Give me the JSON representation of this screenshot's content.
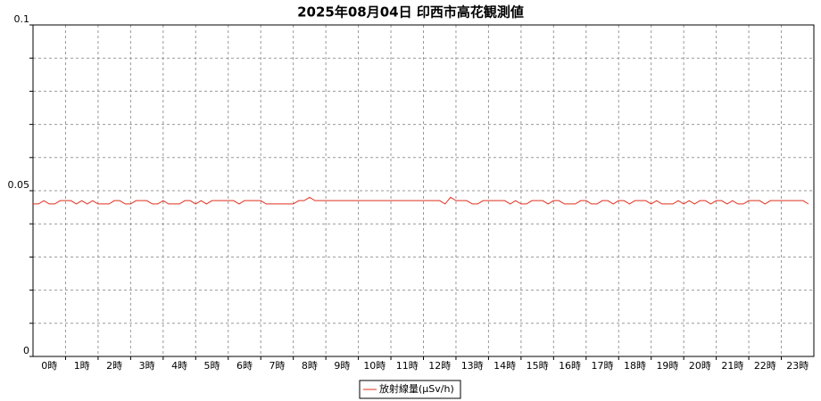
{
  "chart_data": {
    "type": "line",
    "title": "2025年08月04日 印西市高花観測値",
    "x": [
      0,
      10,
      20,
      30,
      40,
      50,
      60,
      70,
      80,
      90,
      100,
      110,
      120,
      130,
      140,
      150,
      160,
      170,
      180,
      190,
      200,
      210,
      220,
      230,
      240,
      250,
      260,
      270,
      280,
      290,
      300,
      310,
      320,
      330,
      340,
      350,
      360,
      370,
      380,
      390,
      400,
      410,
      420,
      430,
      440,
      450,
      460,
      470,
      480,
      490,
      500,
      510,
      520,
      530,
      540,
      550,
      560,
      570,
      580,
      590,
      600,
      610,
      620,
      630,
      640,
      650,
      660,
      670,
      680,
      690,
      700,
      710,
      720,
      730,
      740,
      750,
      760,
      770,
      780,
      790,
      800,
      810,
      820,
      830,
      840,
      850,
      860,
      870,
      880,
      890,
      900,
      910,
      920,
      930,
      940,
      950,
      960,
      970,
      980,
      990,
      1000,
      1010,
      1020,
      1030,
      1040,
      1050,
      1060,
      1070,
      1080,
      1090,
      1100,
      1110,
      1120,
      1130,
      1140,
      1150,
      1160,
      1170,
      1180,
      1190,
      1200,
      1210,
      1220,
      1230,
      1240,
      1250,
      1260,
      1270,
      1280,
      1290,
      1300,
      1310,
      1320,
      1330,
      1340,
      1350,
      1360,
      1370,
      1380,
      1390,
      1400,
      1410,
      1420,
      1430
    ],
    "series": [
      {
        "name": "放射線量(μSv/h)",
        "color": "#e0301e",
        "values": [
          0.046,
          0.046,
          0.047,
          0.046,
          0.046,
          0.047,
          0.047,
          0.047,
          0.046,
          0.047,
          0.046,
          0.047,
          0.046,
          0.046,
          0.046,
          0.047,
          0.047,
          0.046,
          0.046,
          0.047,
          0.047,
          0.047,
          0.046,
          0.046,
          0.047,
          0.046,
          0.046,
          0.046,
          0.047,
          0.047,
          0.046,
          0.047,
          0.046,
          0.047,
          0.047,
          0.047,
          0.047,
          0.047,
          0.046,
          0.047,
          0.047,
          0.047,
          0.047,
          0.046,
          0.046,
          0.046,
          0.046,
          0.046,
          0.046,
          0.047,
          0.047,
          0.048,
          0.047,
          0.047,
          0.047,
          0.047,
          0.047,
          0.047,
          0.047,
          0.047,
          0.047,
          0.047,
          0.047,
          0.047,
          0.047,
          0.047,
          0.047,
          0.047,
          0.047,
          0.047,
          0.047,
          0.047,
          0.047,
          0.047,
          0.047,
          0.047,
          0.046,
          0.048,
          0.047,
          0.047,
          0.047,
          0.046,
          0.046,
          0.047,
          0.047,
          0.047,
          0.047,
          0.047,
          0.046,
          0.047,
          0.046,
          0.046,
          0.047,
          0.047,
          0.047,
          0.046,
          0.047,
          0.047,
          0.046,
          0.046,
          0.046,
          0.047,
          0.047,
          0.046,
          0.046,
          0.047,
          0.047,
          0.046,
          0.047,
          0.047,
          0.046,
          0.047,
          0.047,
          0.047,
          0.046,
          0.047,
          0.046,
          0.046,
          0.046,
          0.047,
          0.046,
          0.047,
          0.046,
          0.047,
          0.047,
          0.046,
          0.047,
          0.047,
          0.046,
          0.047,
          0.046,
          0.046,
          0.047,
          0.047,
          0.047,
          0.046,
          0.047,
          0.047,
          0.047,
          0.047,
          0.047,
          0.047,
          0.047,
          0.046
        ]
      }
    ],
    "xlim": [
      0,
      1440
    ],
    "xticks": [
      {
        "value": 30,
        "label": "0時"
      },
      {
        "value": 90,
        "label": "1時"
      },
      {
        "value": 150,
        "label": "2時"
      },
      {
        "value": 210,
        "label": "3時"
      },
      {
        "value": 270,
        "label": "4時"
      },
      {
        "value": 330,
        "label": "5時"
      },
      {
        "value": 390,
        "label": "6時"
      },
      {
        "value": 450,
        "label": "7時"
      },
      {
        "value": 510,
        "label": "8時"
      },
      {
        "value": 570,
        "label": "9時"
      },
      {
        "value": 630,
        "label": "10時"
      },
      {
        "value": 690,
        "label": "11時"
      },
      {
        "value": 750,
        "label": "12時"
      },
      {
        "value": 810,
        "label": "13時"
      },
      {
        "value": 870,
        "label": "14時"
      },
      {
        "value": 930,
        "label": "15時"
      },
      {
        "value": 990,
        "label": "16時"
      },
      {
        "value": 1050,
        "label": "17時"
      },
      {
        "value": 1110,
        "label": "18時"
      },
      {
        "value": 1170,
        "label": "19時"
      },
      {
        "value": 1230,
        "label": "20時"
      },
      {
        "value": 1290,
        "label": "21時"
      },
      {
        "value": 1350,
        "label": "22時"
      },
      {
        "value": 1410,
        "label": "23時"
      }
    ],
    "ylim": [
      0,
      0.1
    ],
    "yticks": [
      0,
      0.05,
      0.1
    ],
    "ygrid": [
      0.01,
      0.02,
      0.03,
      0.04,
      0.05,
      0.06,
      0.07,
      0.08,
      0.09
    ],
    "grid": true,
    "legend": "bottom"
  }
}
